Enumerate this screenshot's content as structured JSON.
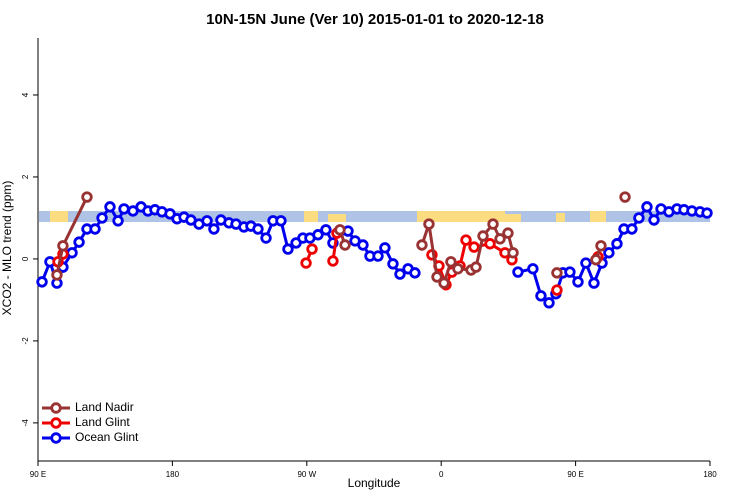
{
  "chart_data": {
    "type": "line",
    "title": "10N-15N June (Ver 10)   2015-01-01 to 2020-12-18",
    "x_label": "Longitude",
    "y_label": "XCO2 - MLO trend (ppm)",
    "xlim": [
      90,
      540
    ],
    "ylim": [
      -4.93,
      5.39
    ],
    "xticks": [
      {
        "value": 90,
        "label": "90 E"
      },
      {
        "value": 180,
        "label": "180"
      },
      {
        "value": 270,
        "label": "90 W"
      },
      {
        "value": 360,
        "label": "0"
      },
      {
        "value": 450,
        "label": "90 E"
      },
      {
        "value": 540,
        "label": "180"
      }
    ],
    "yticks": [
      -4,
      -2,
      0,
      2,
      4
    ],
    "legend": "bottom-left",
    "series": [
      {
        "name": "Land Nadir",
        "color": "#993333",
        "x": [
          102.7,
          106.7,
          122.8,
          null,
          292.2,
          295.6,
          null,
          347.1,
          351.8,
          357.2,
          361.9,
          366.5,
          371.2,
          380.0,
          383.3,
          388.0,
          394.7,
          399.4,
          404.7,
          408.1,
          null,
          437.5,
          null,
          463.6,
          467.0,
          null,
          483.1
        ],
        "values": [
          -0.39,
          0.32,
          1.51,
          null,
          0.71,
          0.34,
          null,
          0.34,
          0.85,
          -0.44,
          -0.59,
          -0.07,
          -0.24,
          -0.27,
          -0.2,
          0.56,
          0.85,
          0.49,
          0.63,
          0.15,
          null,
          -0.34,
          null,
          -0.02,
          0.32,
          null,
          1.51
        ]
      },
      {
        "name": "Land Glint",
        "color": "#ee0000",
        "x": [
          103.4,
          106.7,
          null,
          269.5,
          273.5,
          null,
          287.5,
          290.2,
          null,
          353.8,
          358.5,
          363.2,
          367.2,
          372.6,
          376.6,
          382.0,
          392.7,
          402.7,
          407.4,
          null,
          437.5,
          null,
          465.0
        ],
        "values": [
          -0.07,
          0.12,
          null,
          -0.1,
          0.24,
          null,
          -0.05,
          0.63,
          null,
          0.1,
          -0.17,
          -0.63,
          -0.32,
          -0.17,
          0.46,
          0.29,
          0.37,
          0.15,
          -0.02,
          null,
          -0.76,
          null,
          0.05
        ]
      },
      {
        "name": "Ocean Glint",
        "color": "#0000ee",
        "x": [
          92.7,
          98.0,
          102.7,
          106.7,
          112.8,
          117.5,
          122.8,
          128.2,
          132.9,
          138.2,
          143.6,
          147.6,
          153.6,
          159.0,
          163.6,
          168.3,
          173.0,
          178.4,
          183.1,
          187.8,
          192.4,
          197.8,
          203.2,
          207.8,
          212.5,
          217.9,
          222.6,
          227.9,
          232.6,
          237.3,
          242.7,
          247.4,
          252.7,
          257.4,
          262.8,
          267.4,
          272.1,
          277.5,
          282.8,
          287.5,
          292.2,
          297.6,
          302.3,
          307.6,
          312.3,
          317.7,
          322.3,
          327.7,
          332.4,
          337.8,
          342.4,
          null,
          411.4,
          421.4,
          426.8,
          432.2,
          436.8,
          441.5,
          446.2,
          451.6,
          456.9,
          462.3,
          467.7,
          472.3,
          477.7,
          482.4,
          487.7,
          492.4,
          497.8,
          502.5,
          507.2,
          512.5,
          517.9,
          522.6,
          527.9,
          533.3,
          538.0
        ],
        "values": [
          -0.56,
          -0.07,
          -0.59,
          -0.2,
          0.15,
          0.41,
          0.73,
          0.73,
          1.0,
          1.27,
          0.93,
          1.22,
          1.17,
          1.27,
          1.17,
          1.2,
          1.15,
          1.1,
          0.98,
          1.02,
          0.95,
          0.85,
          0.93,
          0.73,
          0.95,
          0.88,
          0.85,
          0.78,
          0.8,
          0.73,
          0.51,
          0.93,
          0.93,
          0.24,
          0.39,
          0.51,
          0.51,
          0.59,
          0.71,
          0.39,
          0.68,
          0.68,
          0.44,
          0.34,
          0.07,
          0.07,
          0.27,
          -0.12,
          -0.37,
          -0.24,
          -0.34,
          null,
          -0.32,
          -0.24,
          -0.9,
          -1.07,
          -0.85,
          -0.34,
          -0.32,
          -0.56,
          -0.1,
          -0.59,
          -0.1,
          0.15,
          0.37,
          0.73,
          0.73,
          1.0,
          1.27,
          0.95,
          1.22,
          1.15,
          1.22,
          1.2,
          1.17,
          1.15,
          1.12
        ]
      }
    ]
  }
}
